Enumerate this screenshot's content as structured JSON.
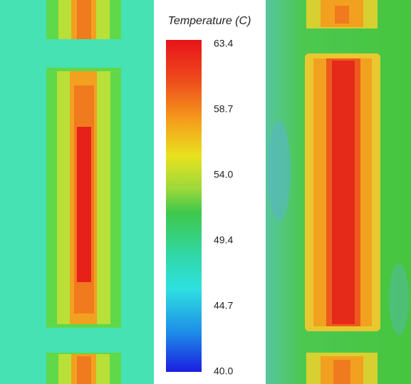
{
  "colorbar": {
    "title": "Temperature (C)",
    "ticks": [
      "63.4",
      "58.7",
      "54.0",
      "49.4",
      "44.7",
      "40.0"
    ]
  }
}
